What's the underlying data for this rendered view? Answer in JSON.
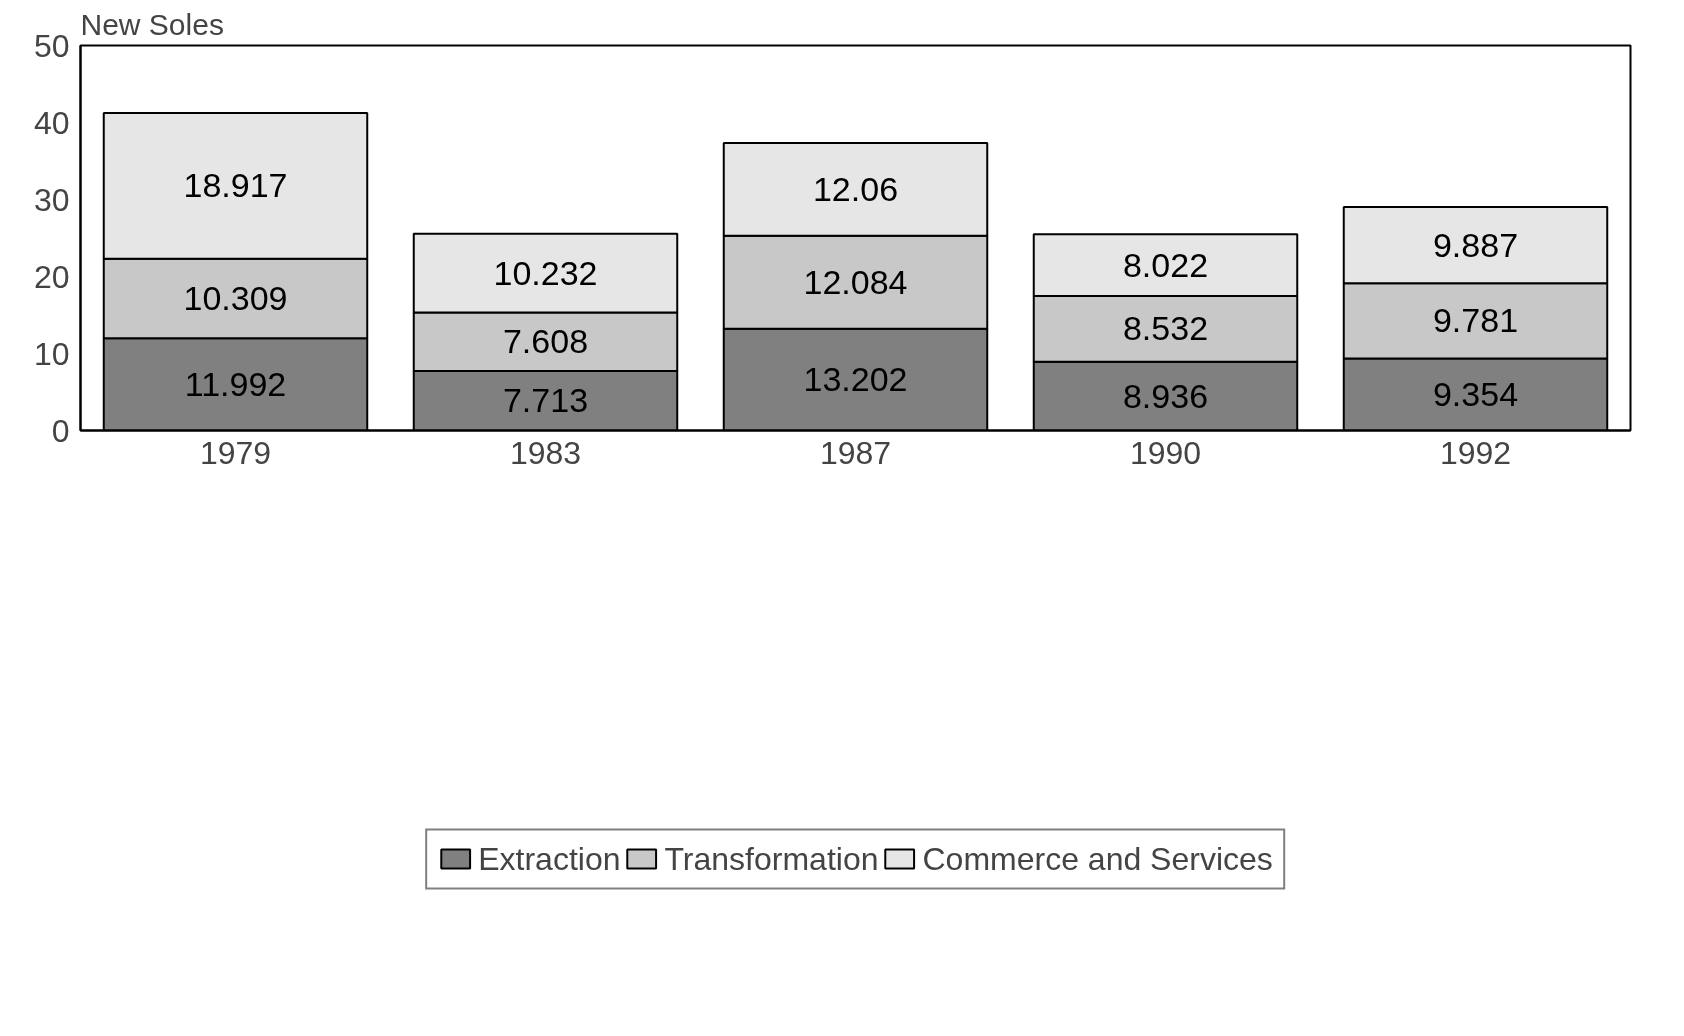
{
  "chart_data": {
    "type": "bar",
    "stacked": true,
    "ylabel": "New Soles",
    "categories": [
      "1979",
      "1983",
      "1987",
      "1990",
      "1992"
    ],
    "series": [
      {
        "name": "Extraction",
        "color": "#808080",
        "values": [
          11.992,
          7.713,
          13.202,
          8.936,
          9.354
        ]
      },
      {
        "name": "Transformation",
        "color": "#c8c8c8",
        "values": [
          10.309,
          7.608,
          12.084,
          8.532,
          9.781
        ]
      },
      {
        "name": "Commerce and Services",
        "color": "#e6e6e6",
        "values": [
          18.917,
          10.232,
          12.06,
          8.022,
          9.887
        ]
      }
    ],
    "ylim": [
      0,
      50
    ],
    "yticks": [
      0,
      10,
      20,
      30,
      40,
      50
    ],
    "grid": false,
    "legend": "bottom",
    "data_labels": true
  }
}
